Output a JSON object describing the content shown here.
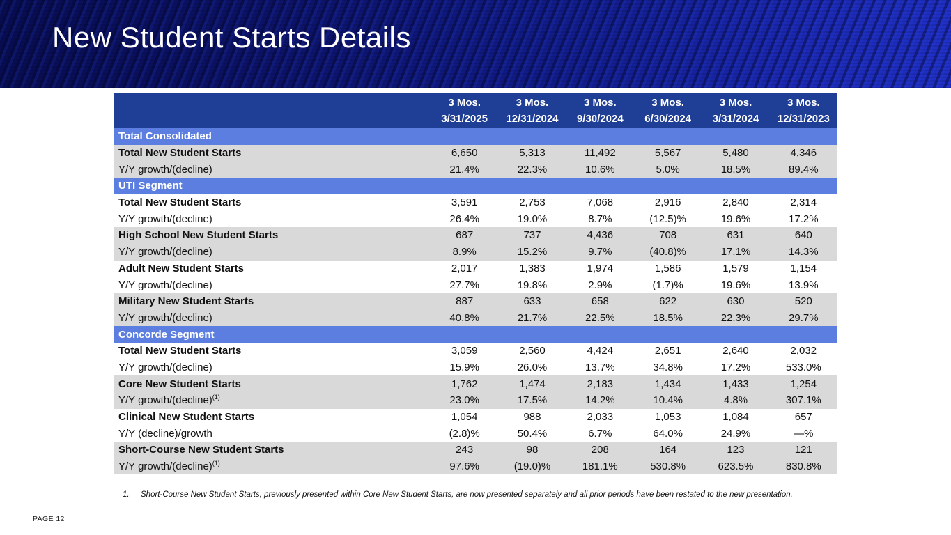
{
  "slide": {
    "title": "New Student Starts Details",
    "page_label": "PAGE 12",
    "footnote_number": "1.",
    "footnote_text": "Short-Course New Student Starts, previously presented within Core New Student Starts, are now presented separately and all prior periods have been restated to the new presentation."
  },
  "colors": {
    "banner_dark": "#080d52",
    "banner_bright": "#2030c6",
    "table_header_bg": "#1F3E96",
    "section_band_bg": "#5B7EE0",
    "row_gray": "#D9D9D9",
    "row_white": "#FFFFFF",
    "text_white": "#FFFFFF"
  },
  "table": {
    "columns": [
      {
        "top": "3 Mos.",
        "bottom": "3/31/2025"
      },
      {
        "top": "3 Mos.",
        "bottom": "12/31/2024"
      },
      {
        "top": "3 Mos.",
        "bottom": "9/30/2024"
      },
      {
        "top": "3 Mos.",
        "bottom": "6/30/2024"
      },
      {
        "top": "3 Mos.",
        "bottom": "3/31/2024"
      },
      {
        "top": "3 Mos.",
        "bottom": "12/31/2023"
      }
    ],
    "sections": [
      {
        "header": "Total Consolidated",
        "rows": [
          {
            "label": "Total New Student Starts",
            "sup": "",
            "bold": true,
            "shade": "gray",
            "values": [
              "6,650",
              "5,313",
              "11,492",
              "5,567",
              "5,480",
              "4,346"
            ]
          },
          {
            "label": "Y/Y growth/(decline)",
            "sup": "",
            "bold": false,
            "shade": "gray",
            "values": [
              "21.4%",
              "22.3%",
              "10.6%",
              "5.0%",
              "18.5%",
              "89.4%"
            ]
          }
        ]
      },
      {
        "header": "UTI Segment",
        "rows": [
          {
            "label": "Total New Student Starts",
            "sup": "",
            "bold": true,
            "shade": "white",
            "values": [
              "3,591",
              "2,753",
              "7,068",
              "2,916",
              "2,840",
              "2,314"
            ]
          },
          {
            "label": "Y/Y growth/(decline)",
            "sup": "",
            "bold": false,
            "shade": "white",
            "values": [
              "26.4%",
              "19.0%",
              "8.7%",
              "(12.5)%",
              "19.6%",
              "17.2%"
            ]
          },
          {
            "label": "High School New Student Starts",
            "sup": "",
            "bold": true,
            "shade": "gray",
            "values": [
              "687",
              "737",
              "4,436",
              "708",
              "631",
              "640"
            ]
          },
          {
            "label": "Y/Y growth/(decline)",
            "sup": "",
            "bold": false,
            "shade": "gray",
            "values": [
              "8.9%",
              "15.2%",
              "9.7%",
              "(40.8)%",
              "17.1%",
              "14.3%"
            ]
          },
          {
            "label": "Adult New Student Starts",
            "sup": "",
            "bold": true,
            "shade": "white",
            "values": [
              "2,017",
              "1,383",
              "1,974",
              "1,586",
              "1,579",
              "1,154"
            ]
          },
          {
            "label": "Y/Y growth/(decline)",
            "sup": "",
            "bold": false,
            "shade": "white",
            "values": [
              "27.7%",
              "19.8%",
              "2.9%",
              "(1.7)%",
              "19.6%",
              "13.9%"
            ]
          },
          {
            "label": "Military New Student Starts",
            "sup": "",
            "bold": true,
            "shade": "gray",
            "values": [
              "887",
              "633",
              "658",
              "622",
              "630",
              "520"
            ]
          },
          {
            "label": "Y/Y growth/(decline)",
            "sup": "",
            "bold": false,
            "shade": "gray",
            "values": [
              "40.8%",
              "21.7%",
              "22.5%",
              "18.5%",
              "22.3%",
              "29.7%"
            ]
          }
        ]
      },
      {
        "header": "Concorde Segment",
        "rows": [
          {
            "label": "Total New Student Starts",
            "sup": "",
            "bold": true,
            "shade": "white",
            "values": [
              "3,059",
              "2,560",
              "4,424",
              "2,651",
              "2,640",
              "2,032"
            ]
          },
          {
            "label": "Y/Y growth/(decline)",
            "sup": "",
            "bold": false,
            "shade": "white",
            "values": [
              "15.9%",
              "26.0%",
              "13.7%",
              "34.8%",
              "17.2%",
              "533.0%"
            ]
          },
          {
            "label": "Core New Student Starts",
            "sup": "",
            "bold": true,
            "shade": "gray",
            "values": [
              "1,762",
              "1,474",
              "2,183",
              "1,434",
              "1,433",
              "1,254"
            ]
          },
          {
            "label": "Y/Y growth/(decline)",
            "sup": "(1)",
            "bold": false,
            "shade": "gray",
            "values": [
              "23.0%",
              "17.5%",
              "14.2%",
              "10.4%",
              "4.8%",
              "307.1%"
            ]
          },
          {
            "label": "Clinical New Student Starts",
            "sup": "",
            "bold": true,
            "shade": "white",
            "values": [
              "1,054",
              "988",
              "2,033",
              "1,053",
              "1,084",
              "657"
            ]
          },
          {
            "label": "Y/Y (decline)/growth",
            "sup": "",
            "bold": false,
            "shade": "white",
            "values": [
              "(2.8)%",
              "50.4%",
              "6.7%",
              "64.0%",
              "24.9%",
              "—%"
            ]
          },
          {
            "label": "Short-Course New Student Starts",
            "sup": "",
            "bold": true,
            "shade": "gray",
            "values": [
              "243",
              "98",
              "208",
              "164",
              "123",
              "121"
            ]
          },
          {
            "label": "Y/Y growth/(decline)",
            "sup": "(1)",
            "bold": false,
            "shade": "gray",
            "values": [
              "97.6%",
              "(19.0)%",
              "181.1%",
              "530.8%",
              "623.5%",
              "830.8%"
            ]
          }
        ]
      }
    ]
  }
}
